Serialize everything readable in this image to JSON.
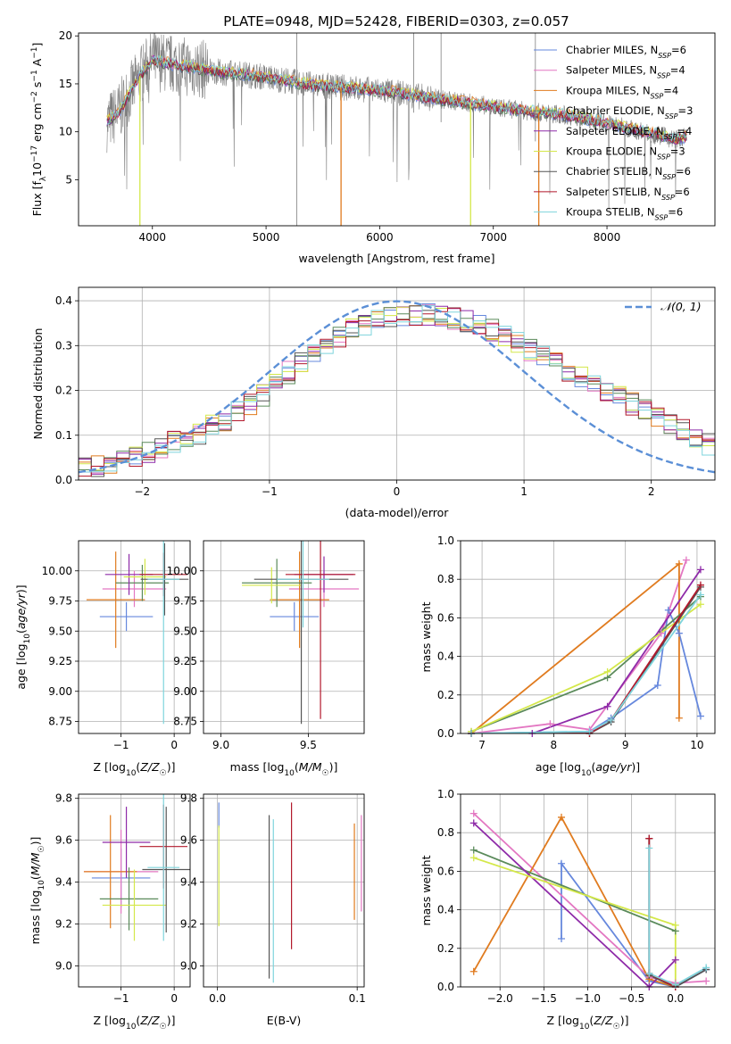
{
  "figure": {
    "title": "PLATE=0948, MJD=52428, FIBERID=0303, z=0.057"
  },
  "colors": {
    "Chabrier MILES": "#6688dd",
    "Salpeter MILES": "#e377c2",
    "Kroupa MILES": "#e07b1f",
    "Chabrier ELODIE": "#5a8a5a",
    "Salpeter ELODIE": "#8e2aa8",
    "Kroupa ELODIE": "#d4e84a",
    "Chabrier STELIB": "#555555",
    "Salpeter STELIB": "#b2182b",
    "Kroupa STELIB": "#7ed4dc",
    "data": "#7f7f7f",
    "normal": "#5b8fd6",
    "grid": "#b0b0b0"
  },
  "chart_data": [
    {
      "id": "spectrum",
      "type": "line",
      "xlabel": "wavelength [Angstrom, rest frame]",
      "ylabel": "Flux [f_λ10^-17 erg cm^-2 s^-1 A^-1]",
      "xlim": [
        3350,
        8950
      ],
      "ylim": [
        0.2,
        20.3
      ],
      "xticks": [
        4000,
        5000,
        6000,
        7000,
        8000
      ],
      "yticks": [
        5,
        10,
        15,
        20
      ],
      "grid": false,
      "legend_position": "top-right",
      "legend": [
        {
          "label": "Chabrier MILES, N",
          "sub": "SSP",
          "suffix": "=6",
          "model": "Chabrier MILES"
        },
        {
          "label": "Salpeter MILES, N",
          "sub": "SSP",
          "suffix": "=4",
          "model": "Salpeter MILES"
        },
        {
          "label": "Kroupa MILES, N",
          "sub": "SSP",
          "suffix": "=4",
          "model": "Kroupa MILES"
        },
        {
          "label": "Chabrier ELODIE, N",
          "sub": "SSP",
          "suffix": "=3",
          "model": "Chabrier ELODIE"
        },
        {
          "label": "Salpeter ELODIE, N",
          "sub": "SSP",
          "suffix": "=4",
          "model": "Salpeter ELODIE"
        },
        {
          "label": "Kroupa ELODIE, N",
          "sub": "SSP",
          "suffix": "=3",
          "model": "Kroupa ELODIE"
        },
        {
          "label": "Chabrier STELIB, N",
          "sub": "SSP",
          "suffix": "=6",
          "model": "Chabrier STELIB"
        },
        {
          "label": "Salpeter STELIB, N",
          "sub": "SSP",
          "suffix": "=6",
          "model": "Salpeter STELIB"
        },
        {
          "label": "Kroupa STELIB, N",
          "sub": "SSP",
          "suffix": "=6",
          "model": "Kroupa STELIB"
        }
      ],
      "continuum": {
        "x": [
          3600,
          3700,
          3800,
          3900,
          4000,
          4100,
          4200,
          4300,
          4400,
          4600,
          4800,
          5000,
          5200,
          5400,
          5600,
          5800,
          6000,
          6200,
          6400,
          6600,
          6800,
          7000,
          7200,
          7400,
          7600,
          7800,
          8000,
          8200,
          8400,
          8600,
          8700
        ],
        "y": [
          11.0,
          12.0,
          14.0,
          16.0,
          17.5,
          17.2,
          17.0,
          16.8,
          16.6,
          16.2,
          16.0,
          15.7,
          15.3,
          14.9,
          14.7,
          14.5,
          14.3,
          14.0,
          13.6,
          13.3,
          13.0,
          12.6,
          12.3,
          12.0,
          11.8,
          11.4,
          10.9,
          10.3,
          9.8,
          9.2,
          9.5
        ]
      }
    },
    {
      "id": "residuals",
      "type": "bar",
      "xlabel": "(data-model)/error",
      "ylabel": "Normed distribution",
      "xlim": [
        -2.5,
        2.5
      ],
      "ylim": [
        0.0,
        0.43
      ],
      "xticks": [
        -2,
        -1,
        0,
        1,
        2
      ],
      "yticks": [
        0.0,
        0.1,
        0.2,
        0.3,
        0.4
      ],
      "grid": true,
      "legend_position": "top-right",
      "normal_label": "𝒩(0, 1)",
      "bin_width": 0.1,
      "hist_base": [
        0.025,
        0.03,
        0.035,
        0.045,
        0.055,
        0.06,
        0.07,
        0.085,
        0.095,
        0.105,
        0.12,
        0.135,
        0.15,
        0.17,
        0.19,
        0.215,
        0.24,
        0.26,
        0.28,
        0.3,
        0.32,
        0.335,
        0.345,
        0.355,
        0.36,
        0.365,
        0.37,
        0.37,
        0.365,
        0.36,
        0.355,
        0.345,
        0.335,
        0.32,
        0.305,
        0.29,
        0.275,
        0.26,
        0.245,
        0.23,
        0.215,
        0.2,
        0.185,
        0.17,
        0.155,
        0.14,
        0.125,
        0.11,
        0.095,
        0.08
      ]
    },
    {
      "id": "age-vs-Z",
      "type": "scatter",
      "xlabel": "Z [log10(Z/Z☉)]",
      "ylabel": "age [log10(age/yr)]",
      "xlim": [
        -1.8,
        0.3
      ],
      "ylim": [
        8.65,
        10.25
      ],
      "xticks": [
        -1,
        0
      ],
      "yticks": [
        8.75,
        9.0,
        9.25,
        9.5,
        9.75,
        10.0
      ],
      "grid": true,
      "points": [
        {
          "model": "Chabrier MILES",
          "x": -0.9,
          "y": 9.62,
          "xerr": 0.5,
          "yerr": 0.12
        },
        {
          "model": "Salpeter MILES",
          "x": -0.75,
          "y": 9.85,
          "xerr": 0.6,
          "yerr": 0.15
        },
        {
          "model": "Kroupa MILES",
          "x": -1.1,
          "y": 9.76,
          "xerr": 0.55,
          "yerr": 0.4
        },
        {
          "model": "Chabrier ELODIE",
          "x": -0.6,
          "y": 9.9,
          "xerr": 0.5,
          "yerr": 0.15
        },
        {
          "model": "Salpeter ELODIE",
          "x": -0.85,
          "y": 9.97,
          "xerr": 0.45,
          "yerr": 0.17
        },
        {
          "model": "Kroupa ELODIE",
          "x": -0.55,
          "y": 9.95,
          "xerr": 0.4,
          "yerr": 0.15
        },
        {
          "model": "Chabrier STELIB",
          "x": -0.18,
          "y": 9.93,
          "xerr": 0.45,
          "yerr": 0.3
        },
        {
          "model": "Salpeter STELIB",
          "x": -0.2,
          "y": 9.97,
          "xerr": 0.45,
          "yerr": 0.18
        },
        {
          "model": "Kroupa STELIB",
          "x": -0.2,
          "y": 9.93,
          "xerr": 0.3,
          "yerr": 1.2
        }
      ]
    },
    {
      "id": "age-vs-mass",
      "type": "scatter",
      "xlabel": "mass [log10(M/M☉)]",
      "ylabel": "",
      "xlim": [
        8.9,
        9.82
      ],
      "ylim": [
        8.65,
        10.25
      ],
      "xticks": [
        9.0,
        9.5
      ],
      "yticks": [
        8.75,
        9.0,
        9.25,
        9.5,
        9.75,
        10.0
      ],
      "grid": true,
      "points": [
        {
          "model": "Chabrier MILES",
          "x": 9.42,
          "y": 9.62,
          "xerr": 0.14,
          "yerr": 0.12
        },
        {
          "model": "Salpeter MILES",
          "x": 9.59,
          "y": 9.85,
          "xerr": 0.2,
          "yerr": 0.15
        },
        {
          "model": "Kroupa MILES",
          "x": 9.45,
          "y": 9.76,
          "xerr": 0.17,
          "yerr": 0.4
        },
        {
          "model": "Chabrier ELODIE",
          "x": 9.32,
          "y": 9.9,
          "xerr": 0.2,
          "yerr": 0.2
        },
        {
          "model": "Salpeter ELODIE",
          "x": 9.59,
          "y": 9.97,
          "xerr": 0.17,
          "yerr": 0.15
        },
        {
          "model": "Kroupa ELODIE",
          "x": 9.29,
          "y": 9.88,
          "xerr": 0.17,
          "yerr": 0.15
        },
        {
          "model": "Chabrier STELIB",
          "x": 9.46,
          "y": 9.93,
          "xerr": 0.27,
          "yerr": 1.2
        },
        {
          "model": "Salpeter STELIB",
          "x": 9.57,
          "y": 9.97,
          "xerr": 0.2,
          "yerr": 1.2
        },
        {
          "model": "Kroupa STELIB",
          "x": 9.47,
          "y": 9.93,
          "xerr": 0.15,
          "yerr": 0.4
        }
      ]
    },
    {
      "id": "weight-vs-age",
      "type": "line",
      "xlabel": "age [log10(age/yr)]",
      "ylabel": "mass weight",
      "xlim": [
        6.7,
        10.25
      ],
      "ylim": [
        0.0,
        1.0
      ],
      "xticks": [
        7,
        8,
        9,
        10
      ],
      "yticks": [
        0.0,
        0.2,
        0.4,
        0.6,
        0.8,
        1.0
      ],
      "grid": true,
      "series": [
        {
          "model": "Chabrier MILES",
          "x": [
            6.85,
            8.5,
            8.8,
            9.45,
            9.6,
            9.75,
            10.05
          ],
          "y": [
            0.0,
            0.01,
            0.08,
            0.25,
            0.64,
            0.52,
            0.09
          ]
        },
        {
          "model": "Salpeter MILES",
          "x": [
            6.85,
            7.95,
            8.5,
            9.5,
            9.85
          ],
          "y": [
            0.0,
            0.05,
            0.02,
            0.52,
            0.9
          ]
        },
        {
          "model": "Kroupa MILES",
          "x": [
            6.85,
            9.75,
            9.75
          ],
          "y": [
            0.0,
            0.88,
            0.08
          ]
        },
        {
          "model": "Chabrier ELODIE",
          "x": [
            6.85,
            8.75,
            10.05
          ],
          "y": [
            0.01,
            0.29,
            0.71
          ]
        },
        {
          "model": "Salpeter ELODIE",
          "x": [
            6.85,
            7.7,
            8.75,
            10.05
          ],
          "y": [
            0.0,
            0.0,
            0.14,
            0.85
          ]
        },
        {
          "model": "Kroupa ELODIE",
          "x": [
            6.85,
            8.75,
            10.05
          ],
          "y": [
            0.01,
            0.32,
            0.67
          ]
        },
        {
          "model": "Chabrier STELIB",
          "x": [
            6.85,
            8.5,
            8.8,
            10.05
          ],
          "y": [
            0.0,
            0.0,
            0.06,
            0.76
          ]
        },
        {
          "model": "Salpeter STELIB",
          "x": [
            6.85,
            8.5,
            8.8,
            10.05
          ],
          "y": [
            0.0,
            0.0,
            0.07,
            0.77
          ]
        },
        {
          "model": "Kroupa STELIB",
          "x": [
            6.85,
            8.5,
            8.8,
            10.05
          ],
          "y": [
            0.0,
            0.01,
            0.07,
            0.72
          ]
        }
      ]
    },
    {
      "id": "mass-vs-Z",
      "type": "scatter",
      "xlabel": "Z [log10(Z/Z☉)]",
      "ylabel": "mass [log10(M/M☉)]",
      "xlim": [
        -1.8,
        0.3
      ],
      "ylim": [
        8.9,
        9.82
      ],
      "xticks": [
        -1,
        0
      ],
      "yticks": [
        9.0,
        9.2,
        9.4,
        9.6,
        9.8
      ],
      "grid": true,
      "points": [
        {
          "model": "Chabrier MILES",
          "x": -1.0,
          "y": 9.42,
          "xerr": 0.55,
          "yerr": 0.14
        },
        {
          "model": "Salpeter MILES",
          "x": -1.0,
          "y": 9.45,
          "xerr": 0.7,
          "yerr": 0.2
        },
        {
          "model": "Kroupa MILES",
          "x": -1.2,
          "y": 9.45,
          "xerr": 0.5,
          "yerr": 0.27
        },
        {
          "model": "Chabrier ELODIE",
          "x": -0.85,
          "y": 9.32,
          "xerr": 0.55,
          "yerr": 0.15
        },
        {
          "model": "Salpeter ELODIE",
          "x": -0.9,
          "y": 9.59,
          "xerr": 0.45,
          "yerr": 0.17
        },
        {
          "model": "Kroupa ELODIE",
          "x": -0.75,
          "y": 9.29,
          "xerr": 0.6,
          "yerr": 0.17
        },
        {
          "model": "Chabrier STELIB",
          "x": -0.15,
          "y": 9.46,
          "xerr": 0.45,
          "yerr": 0.3
        },
        {
          "model": "Salpeter STELIB",
          "x": -0.2,
          "y": 9.57,
          "xerr": 0.45,
          "yerr": 0.2
        },
        {
          "model": "Kroupa STELIB",
          "x": -0.2,
          "y": 9.47,
          "xerr": 0.3,
          "yerr": 0.35
        }
      ]
    },
    {
      "id": "mass-vs-ebv",
      "type": "scatter",
      "xlabel": "E(B-V)",
      "ylabel": "",
      "xlim": [
        -0.01,
        0.105
      ],
      "ylim": [
        8.9,
        9.82
      ],
      "xticks": [
        0.0,
        0.1
      ],
      "yticks": [
        9.0,
        9.2,
        9.4,
        9.6,
        9.8
      ],
      "grid": true,
      "points": [
        {
          "model": "Chabrier MILES",
          "x": 0.001,
          "y": 9.72,
          "xerr": 0,
          "yerr": 0.06
        },
        {
          "model": "Kroupa ELODIE",
          "x": 0.001,
          "y": 9.43,
          "xerr": 0,
          "yerr": 0.24
        },
        {
          "model": "Chabrier STELIB",
          "x": 0.037,
          "y": 9.33,
          "xerr": 0,
          "yerr": 0.39
        },
        {
          "model": "Kroupa STELIB",
          "x": 0.04,
          "y": 9.31,
          "xerr": 0,
          "yerr": 0.39
        },
        {
          "model": "Salpeter STELIB",
          "x": 0.053,
          "y": 9.43,
          "xerr": 0,
          "yerr": 0.35
        },
        {
          "model": "Kroupa MILES",
          "x": 0.098,
          "y": 9.45,
          "xerr": 0,
          "yerr": 0.23
        },
        {
          "model": "Salpeter MILES",
          "x": 0.103,
          "y": 9.49,
          "xerr": 0,
          "yerr": 0.23
        }
      ]
    },
    {
      "id": "weight-vs-Z",
      "type": "line",
      "xlabel": "Z [log10(Z/Z☉)]",
      "ylabel": "mass weight",
      "xlim": [
        -2.45,
        0.45
      ],
      "ylim": [
        0.0,
        1.0
      ],
      "xticks": [
        -2.0,
        -1.5,
        -1.0,
        -0.5,
        0.0
      ],
      "yticks": [
        0.0,
        0.2,
        0.4,
        0.6,
        0.8,
        1.0
      ],
      "grid": true,
      "series": [
        {
          "model": "Chabrier MILES",
          "x": [
            -1.3,
            -1.3,
            -0.3,
            0.0,
            0.35
          ],
          "y": [
            0.25,
            0.64,
            0.03,
            0.0,
            0.09
          ]
        },
        {
          "model": "Salpeter MILES",
          "x": [
            -2.3,
            -0.3,
            0.0,
            0.35
          ],
          "y": [
            0.9,
            0.05,
            0.02,
            0.03
          ]
        },
        {
          "model": "Kroupa MILES",
          "x": [
            -2.3,
            -1.3,
            -0.3,
            0.0
          ],
          "y": [
            0.08,
            0.88,
            0.04,
            0.0
          ]
        },
        {
          "model": "Chabrier ELODIE",
          "x": [
            -2.3,
            0.0
          ],
          "y": [
            0.71,
            0.29
          ]
        },
        {
          "model": "Salpeter ELODIE",
          "x": [
            -2.3,
            -0.3,
            0.0
          ],
          "y": [
            0.85,
            0.0,
            0.14
          ]
        },
        {
          "model": "Kroupa ELODIE",
          "x": [
            -2.3,
            0.0,
            0.0
          ],
          "y": [
            0.67,
            0.32,
            0.01
          ]
        },
        {
          "model": "Chabrier STELIB",
          "x": [
            -0.3,
            -0.3,
            0.0,
            0.35
          ],
          "y": [
            0.77,
            0.06,
            0.0,
            0.09
          ]
        },
        {
          "model": "Salpeter STELIB",
          "x": [
            -0.3,
            -0.3,
            0.0
          ],
          "y": [
            0.77,
            0.07,
            0.0
          ]
        },
        {
          "model": "Kroupa STELIB",
          "x": [
            -0.3,
            -0.3,
            0.0,
            0.35
          ],
          "y": [
            0.72,
            0.07,
            0.01,
            0.1
          ]
        }
      ]
    }
  ]
}
